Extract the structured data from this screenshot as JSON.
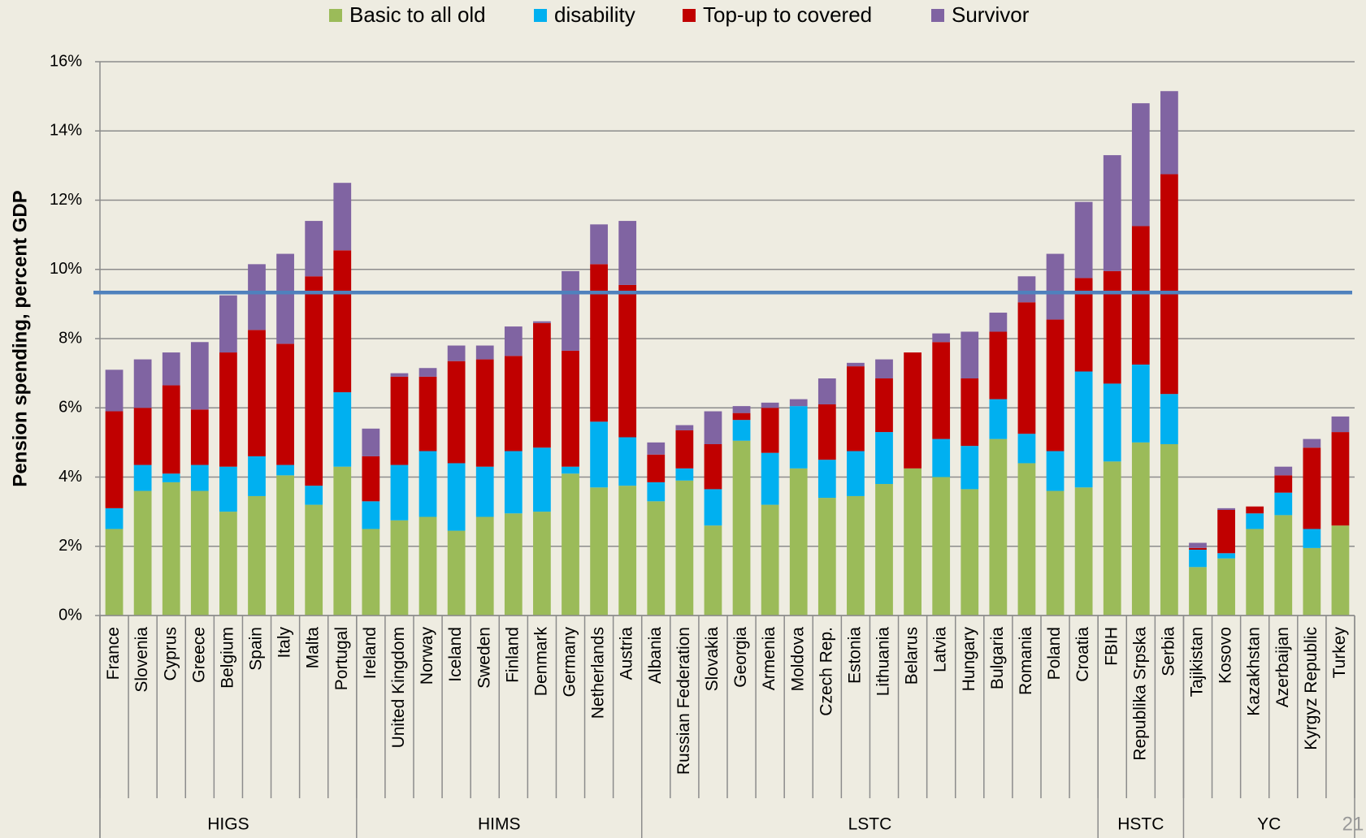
{
  "chart_data": {
    "type": "stacked_bar",
    "y_axis_label": "Pension spending, percent GDP",
    "groups": [
      {
        "label": "HIGS",
        "categories": [
          "France",
          "Slovenia",
          "Cyprus",
          "Greece",
          "Belgium",
          "Spain",
          "Italy",
          "Malta",
          "Portugal"
        ]
      },
      {
        "label": "HIMS",
        "categories": [
          "Ireland",
          "United Kingdom",
          "Norway",
          "Iceland",
          "Sweden",
          "Finland",
          "Denmark",
          "Germany",
          "Netherlands",
          "Austria"
        ]
      },
      {
        "label": "LSTC",
        "categories": [
          "Albania",
          "Russian Federation",
          "Slovakia",
          "Georgia",
          "Armenia",
          "Moldova",
          "Czech Rep.",
          "Estonia",
          "Lithuania",
          "Belarus",
          "Latvia",
          "Hungary",
          "Bulgaria",
          "Romania",
          "Poland",
          "Croatia"
        ]
      },
      {
        "label": "HSTC",
        "categories": [
          "FBIH",
          "Republika Srpska",
          "Serbia"
        ]
      },
      {
        "label": "YC",
        "categories": [
          "Tajikistan",
          "Kosovo",
          "Kazakhstan",
          "Azerbaijan",
          "Kyrgyz Republic",
          "Turkey"
        ]
      }
    ],
    "series": [
      {
        "name": "Basic to all old",
        "color": "#9bbb59",
        "values": [
          2.5,
          3.6,
          3.85,
          3.6,
          3.0,
          3.45,
          4.05,
          3.2,
          4.3,
          2.5,
          2.75,
          2.85,
          2.45,
          2.85,
          2.95,
          3.0,
          4.1,
          3.7,
          3.75,
          3.3,
          3.9,
          2.6,
          5.05,
          3.2,
          4.25,
          3.4,
          3.45,
          3.8,
          4.25,
          4.0,
          3.65,
          5.1,
          4.4,
          3.6,
          3.7,
          4.45,
          5.0,
          4.95,
          1.4,
          1.65,
          2.5,
          2.9,
          1.95,
          2.6
        ]
      },
      {
        "name": "disability",
        "color": "#00b0f0",
        "values": [
          0.6,
          0.75,
          0.25,
          0.75,
          1.3,
          1.15,
          0.3,
          0.55,
          2.15,
          0.8,
          1.6,
          1.9,
          1.95,
          1.45,
          1.8,
          1.85,
          0.2,
          1.9,
          1.4,
          0.55,
          0.35,
          1.05,
          0.6,
          1.5,
          1.8,
          1.1,
          1.3,
          1.5,
          0,
          1.1,
          1.25,
          1.15,
          0.85,
          1.15,
          3.35,
          2.25,
          2.25,
          1.45,
          0.5,
          0.15,
          0.45,
          0.65,
          0.55,
          0
        ]
      },
      {
        "name": "Top-up to covered",
        "color": "#c00000",
        "values": [
          2.8,
          1.65,
          2.55,
          1.6,
          3.3,
          3.65,
          3.5,
          6.05,
          4.1,
          1.3,
          2.55,
          2.15,
          2.95,
          3.1,
          2.75,
          3.6,
          3.35,
          4.55,
          4.4,
          0.8,
          1.1,
          1.3,
          0.2,
          1.3,
          0,
          1.6,
          2.45,
          1.55,
          3.35,
          2.8,
          1.95,
          1.95,
          3.8,
          3.8,
          2.7,
          3.25,
          4.0,
          6.35,
          0.05,
          1.25,
          0.2,
          0.5,
          2.35,
          2.7
        ]
      },
      {
        "name": "Survivor",
        "color": "#8064a2",
        "values": [
          1.2,
          1.4,
          0.95,
          1.95,
          1.65,
          1.9,
          2.6,
          1.6,
          1.95,
          0.8,
          0.1,
          0.25,
          0.45,
          0.4,
          0.85,
          0.05,
          2.3,
          1.15,
          1.85,
          0.35,
          0.15,
          0.95,
          0.2,
          0.15,
          0.2,
          0.75,
          0.1,
          0.55,
          0,
          0.25,
          1.35,
          0.55,
          0.75,
          1.9,
          2.2,
          3.35,
          3.55,
          2.4,
          0.15,
          0.05,
          0,
          0.25,
          0.25,
          0.45
        ]
      }
    ],
    "reference_line": {
      "value": 9.33,
      "color": "#4f81bd"
    },
    "ylim": [
      0,
      16
    ],
    "yticks": [
      {
        "value": 0,
        "label": "0%"
      },
      {
        "value": 2,
        "label": "2%"
      },
      {
        "value": 4,
        "label": "4%"
      },
      {
        "value": 6,
        "label": "6%"
      },
      {
        "value": 8,
        "label": "8%"
      },
      {
        "value": 10,
        "label": "10%"
      },
      {
        "value": 12,
        "label": "12%"
      },
      {
        "value": 14,
        "label": "14%"
      },
      {
        "value": 16,
        "label": "16%"
      }
    ],
    "grid": true,
    "legend": "top"
  },
  "slide_number": "21"
}
